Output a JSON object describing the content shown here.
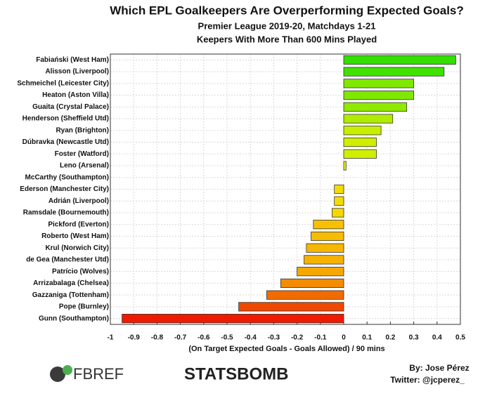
{
  "chart_data": {
    "type": "barh",
    "title": "Which EPL Goalkeepers Are Overperforming Expected Goals?",
    "subtitle": "Premier League 2019-20, Matchdays 1-21",
    "subtitle2": "Keepers With More Than 600 Mins Played",
    "x_label": "(On Target Expected Goals - Goals Allowed) / 90 mins",
    "categories": [
      "Fabiański (West Ham)",
      "Alisson (Liverpool)",
      "Schmeichel (Leicester City)",
      "Heaton (Aston Villa)",
      "Guaita (Crystal Palace)",
      "Henderson (Sheffield Utd)",
      "Ryan (Brighton)",
      "Dúbravka (Newcastle Utd)",
      "Foster (Watford)",
      "Leno (Arsenal)",
      "McCarthy (Southampton)",
      "Ederson (Manchester City)",
      "Adrián (Liverpool)",
      "Ramsdale (Bournemouth)",
      "Pickford (Everton)",
      "Roberto (West Ham)",
      "Krul (Norwich City)",
      "de Gea (Manchester Utd)",
      "Patrício (Wolves)",
      "Arrizabalaga (Chelsea)",
      "Gazzaniga (Tottenham)",
      "Pope (Burnley)",
      "Gunn (Southampton)"
    ],
    "values": [
      0.48,
      0.43,
      0.3,
      0.3,
      0.27,
      0.21,
      0.16,
      0.14,
      0.14,
      0.01,
      0,
      -0.04,
      -0.04,
      -0.05,
      -0.13,
      -0.14,
      -0.16,
      -0.17,
      -0.2,
      -0.27,
      -0.33,
      -0.45,
      -0.95
    ],
    "colors": [
      "#33e000",
      "#40e200",
      "#80e800",
      "#80e800",
      "#90ea00",
      "#b0ec00",
      "#c8ee00",
      "#d0ef00",
      "#d0ef00",
      "#eef000",
      "#f2ee00",
      "#f5dc00",
      "#f5dc00",
      "#f5d800",
      "#f7c000",
      "#f7bc00",
      "#f7b600",
      "#f7b200",
      "#f6a800",
      "#f48c00",
      "#f06c00",
      "#f04800",
      "#ef1a00"
    ],
    "xlim": [
      -1,
      0.5
    ],
    "xticks": [
      -1,
      -0.9,
      -0.8,
      -0.7,
      -0.6,
      -0.5,
      -0.4,
      -0.3,
      -0.2,
      -0.1,
      0,
      0.1,
      0.2,
      0.3,
      0.4,
      0.5
    ],
    "grid": true
  },
  "footer": {
    "logos": [
      "FBREF",
      "STATSBOMB"
    ],
    "credit": "By: Jose Pérez",
    "twitter": "Twitter: @jcperez_"
  }
}
